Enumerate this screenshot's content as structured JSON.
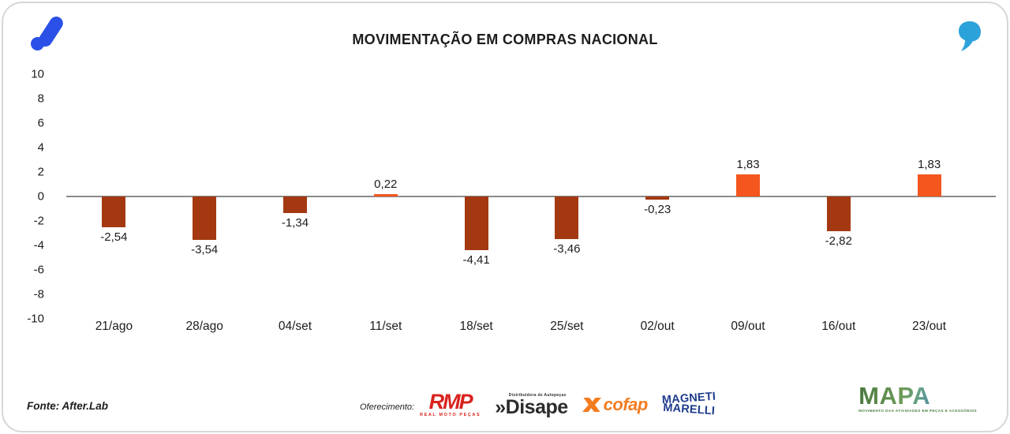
{
  "header": {
    "title": "MOVIMENTAÇÃO EM COMPRAS NACIONAL"
  },
  "branding": {
    "afterlab_logo_color": "#2b50e8",
    "quote_mark_color": "#2ca2db"
  },
  "chart_data": {
    "type": "bar",
    "title": "MOVIMENTAÇÃO EM COMPRAS NACIONAL",
    "categories": [
      "21/ago",
      "28/ago",
      "04/set",
      "11/set",
      "18/set",
      "25/set",
      "02/out",
      "09/out",
      "16/out",
      "23/out"
    ],
    "values": [
      -2.54,
      -3.54,
      -1.34,
      0.22,
      -4.41,
      -3.46,
      -0.23,
      1.83,
      -2.82,
      1.83
    ],
    "labels": [
      "-2,54",
      "-3,54",
      "-1,34",
      "0,22",
      "-4,41",
      "-3,46",
      "-0,23",
      "1,83",
      "-2,82",
      "1,83"
    ],
    "xlabel": "",
    "ylabel": "",
    "ylim": [
      -10,
      10
    ],
    "yticks": [
      10,
      8,
      6,
      4,
      2,
      0,
      -2,
      -4,
      -6,
      -8,
      -10
    ],
    "grid": false,
    "legend": "none",
    "positive_color": "#f4561e",
    "negative_color": "#a43911",
    "zero_line_color": "#8a8a8a"
  },
  "footer": {
    "source": "Fonte: After.Lab",
    "sponsors_label": "Oferecimento:",
    "sponsors": {
      "rmp": {
        "name": "RMP",
        "subtitle": "REAL MOTO PEÇAS",
        "color": "#d9231e"
      },
      "disape": {
        "name": "»Disape",
        "subtitle": "Distribuidora de Autopeças",
        "color": "#2b2b2b"
      },
      "cofap": {
        "name": "cofap",
        "color": "#f47c20"
      },
      "magneti_marelli": {
        "line1": "MAGNETI",
        "line2": "MARELLI",
        "color": "#1e3c8c"
      }
    },
    "mapa": {
      "name": "MAPA",
      "tagline": "MOVIMENTO DAS ATIVIDADES EM PEÇAS E ACESSÓRIOS"
    }
  }
}
